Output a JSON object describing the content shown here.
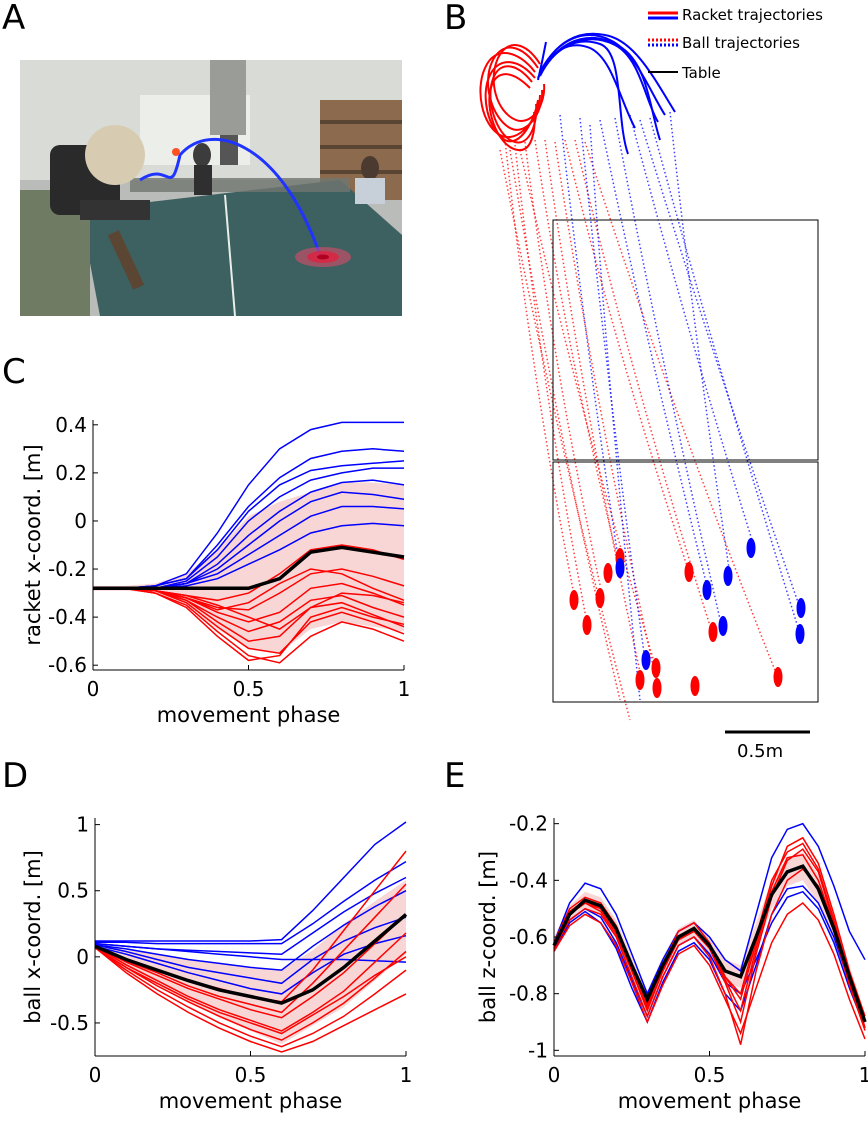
{
  "panels": {
    "a": "A",
    "b": "B",
    "c": "C",
    "d": "D",
    "e": "E"
  },
  "colors": {
    "racket": "#ff0000",
    "ball": "#0000ff",
    "mean": "#000000",
    "band": "#f9d6d6",
    "table_line": "#000000"
  },
  "legend": {
    "racket": "Racket trajectories",
    "ball": "Ball trajectories",
    "table": "Table"
  },
  "scale_bar": "0.5m",
  "chart_data": [
    {
      "id": "C",
      "type": "line",
      "xlabel": "movement phase",
      "ylabel": "racket x-coord. [m]",
      "xlim": [
        0,
        1
      ],
      "ylim": [
        -0.62,
        0.42
      ],
      "xticks": [
        "0",
        "0.5",
        "1"
      ],
      "yticks": [
        "0.4",
        "0.2",
        "0",
        "-0.2",
        "-0.4",
        "-0.6"
      ],
      "x": [
        0,
        0.1,
        0.2,
        0.3,
        0.4,
        0.5,
        0.6,
        0.7,
        0.8,
        0.9,
        1.0
      ],
      "mean": [
        -0.28,
        -0.28,
        -0.28,
        -0.28,
        -0.28,
        -0.28,
        -0.24,
        -0.13,
        -0.11,
        -0.13,
        -0.15
      ],
      "band_upper": [
        -0.27,
        -0.27,
        -0.26,
        -0.22,
        -0.12,
        0.02,
        0.08,
        0.12,
        0.16,
        0.16,
        0.15
      ],
      "band_lower": [
        -0.29,
        -0.29,
        -0.3,
        -0.35,
        -0.45,
        -0.53,
        -0.55,
        -0.45,
        -0.42,
        -0.44,
        -0.46
      ],
      "series": [
        {
          "color": "blue",
          "values": [
            -0.28,
            -0.28,
            -0.27,
            -0.22,
            -0.05,
            0.15,
            0.3,
            0.38,
            0.41,
            0.41,
            0.41
          ]
        },
        {
          "color": "blue",
          "values": [
            -0.28,
            -0.28,
            -0.27,
            -0.24,
            -0.1,
            0.06,
            0.18,
            0.26,
            0.29,
            0.3,
            0.29
          ]
        },
        {
          "color": "blue",
          "values": [
            -0.28,
            -0.28,
            -0.27,
            -0.24,
            -0.12,
            0.04,
            0.15,
            0.21,
            0.23,
            0.24,
            0.25
          ]
        },
        {
          "color": "blue",
          "values": [
            -0.28,
            -0.28,
            -0.28,
            -0.25,
            -0.15,
            0.0,
            0.1,
            0.17,
            0.2,
            0.22,
            0.22
          ]
        },
        {
          "color": "blue",
          "values": [
            -0.28,
            -0.28,
            -0.28,
            -0.26,
            -0.18,
            -0.06,
            0.04,
            0.12,
            0.16,
            0.17,
            0.15
          ]
        },
        {
          "color": "blue",
          "values": [
            -0.28,
            -0.28,
            -0.28,
            -0.26,
            -0.2,
            -0.1,
            0.0,
            0.08,
            0.12,
            0.11,
            0.09
          ]
        },
        {
          "color": "blue",
          "values": [
            -0.28,
            -0.28,
            -0.28,
            -0.26,
            -0.22,
            -0.14,
            -0.06,
            0.02,
            0.06,
            0.06,
            0.05
          ]
        },
        {
          "color": "blue",
          "values": [
            -0.28,
            -0.28,
            -0.28,
            -0.27,
            -0.24,
            -0.18,
            -0.12,
            -0.05,
            -0.02,
            -0.01,
            -0.02
          ]
        },
        {
          "color": "red",
          "values": [
            -0.28,
            -0.28,
            -0.29,
            -0.31,
            -0.33,
            -0.3,
            -0.22,
            -0.12,
            -0.1,
            -0.12,
            -0.16
          ]
        },
        {
          "color": "red",
          "values": [
            -0.28,
            -0.28,
            -0.29,
            -0.32,
            -0.36,
            -0.37,
            -0.3,
            -0.22,
            -0.2,
            -0.23,
            -0.27
          ]
        },
        {
          "color": "red",
          "values": [
            -0.28,
            -0.28,
            -0.29,
            -0.32,
            -0.38,
            -0.42,
            -0.38,
            -0.28,
            -0.26,
            -0.3,
            -0.35
          ]
        },
        {
          "color": "red",
          "values": [
            -0.28,
            -0.28,
            -0.29,
            -0.33,
            -0.4,
            -0.46,
            -0.42,
            -0.33,
            -0.31,
            -0.36,
            -0.4
          ]
        },
        {
          "color": "red",
          "values": [
            -0.28,
            -0.28,
            -0.29,
            -0.33,
            -0.42,
            -0.5,
            -0.48,
            -0.36,
            -0.34,
            -0.39,
            -0.44
          ]
        },
        {
          "color": "red",
          "values": [
            -0.28,
            -0.28,
            -0.29,
            -0.34,
            -0.44,
            -0.53,
            -0.55,
            -0.42,
            -0.38,
            -0.42,
            -0.47
          ]
        },
        {
          "color": "red",
          "values": [
            -0.28,
            -0.28,
            -0.3,
            -0.35,
            -0.46,
            -0.56,
            -0.59,
            -0.48,
            -0.42,
            -0.45,
            -0.5
          ]
        },
        {
          "color": "red",
          "values": [
            -0.28,
            -0.28,
            -0.3,
            -0.36,
            -0.48,
            -0.58,
            -0.56,
            -0.4,
            -0.36,
            -0.4,
            -0.43
          ]
        },
        {
          "color": "red",
          "values": [
            -0.28,
            -0.28,
            -0.29,
            -0.32,
            -0.37,
            -0.34,
            -0.26,
            -0.2,
            -0.22,
            -0.28,
            -0.33
          ]
        },
        {
          "color": "red",
          "values": [
            -0.28,
            -0.28,
            -0.29,
            -0.31,
            -0.35,
            -0.4,
            -0.45,
            -0.36,
            -0.3,
            -0.31,
            -0.34
          ]
        }
      ]
    },
    {
      "id": "D",
      "type": "line",
      "xlabel": "movement phase",
      "ylabel": "ball x-coord. [m]",
      "xlim": [
        0,
        1
      ],
      "ylim": [
        -0.75,
        1.05
      ],
      "xticks": [
        "0",
        "0.5",
        "1"
      ],
      "yticks": [
        "1",
        "0.5",
        "0",
        "-0.5"
      ],
      "x": [
        0,
        0.1,
        0.2,
        0.3,
        0.4,
        0.5,
        0.6,
        0.7,
        0.8,
        0.9,
        1.0
      ],
      "mean": [
        0.08,
        -0.02,
        -0.1,
        -0.18,
        -0.25,
        -0.3,
        -0.35,
        -0.25,
        -0.08,
        0.12,
        0.32
      ],
      "band_upper": [
        0.1,
        0.05,
        0.02,
        -0.02,
        -0.05,
        -0.08,
        -0.1,
        0.05,
        0.25,
        0.42,
        0.58
      ],
      "band_lower": [
        0.06,
        -0.1,
        -0.22,
        -0.34,
        -0.46,
        -0.56,
        -0.66,
        -0.52,
        -0.38,
        -0.18,
        0.02
      ],
      "series": [
        {
          "color": "blue",
          "values": [
            0.12,
            0.12,
            0.12,
            0.12,
            0.12,
            0.12,
            0.13,
            0.35,
            0.6,
            0.85,
            1.02
          ]
        },
        {
          "color": "blue",
          "values": [
            0.11,
            0.11,
            0.1,
            0.1,
            0.1,
            0.1,
            0.1,
            0.25,
            0.42,
            0.58,
            0.72
          ]
        },
        {
          "color": "blue",
          "values": [
            0.1,
            0.08,
            0.06,
            0.05,
            0.04,
            0.03,
            0.02,
            0.18,
            0.34,
            0.48,
            0.6
          ]
        },
        {
          "color": "blue",
          "values": [
            0.09,
            0.06,
            0.02,
            -0.02,
            -0.05,
            -0.08,
            -0.1,
            0.08,
            0.24,
            0.38,
            0.5
          ]
        },
        {
          "color": "blue",
          "values": [
            0.09,
            0.04,
            -0.02,
            -0.08,
            -0.12,
            -0.16,
            -0.2,
            -0.02,
            0.12,
            0.22,
            0.3
          ]
        },
        {
          "color": "blue",
          "values": [
            0.08,
            0.02,
            -0.05,
            -0.12,
            -0.18,
            -0.24,
            -0.28,
            -0.12,
            0.02,
            0.1,
            0.16
          ]
        },
        {
          "color": "blue",
          "values": [
            0.1,
            0.08,
            0.06,
            0.04,
            0.02,
            0.0,
            -0.02,
            -0.02,
            -0.02,
            -0.03,
            -0.04
          ]
        },
        {
          "color": "red",
          "values": [
            0.08,
            -0.04,
            -0.14,
            -0.24,
            -0.32,
            -0.4,
            -0.46,
            -0.3,
            -0.12,
            0.1,
            0.32
          ]
        },
        {
          "color": "red",
          "values": [
            0.08,
            -0.06,
            -0.18,
            -0.3,
            -0.4,
            -0.48,
            -0.56,
            -0.42,
            -0.26,
            -0.04,
            0.18
          ]
        },
        {
          "color": "red",
          "values": [
            0.07,
            -0.08,
            -0.22,
            -0.34,
            -0.45,
            -0.55,
            -0.63,
            -0.5,
            -0.35,
            -0.16,
            0.04
          ]
        },
        {
          "color": "red",
          "values": [
            0.07,
            -0.1,
            -0.25,
            -0.38,
            -0.5,
            -0.6,
            -0.68,
            -0.58,
            -0.45,
            -0.28,
            -0.1
          ]
        },
        {
          "color": "red",
          "values": [
            0.07,
            -0.12,
            -0.28,
            -0.42,
            -0.54,
            -0.64,
            -0.72,
            -0.64,
            -0.52,
            -0.4,
            -0.28
          ]
        },
        {
          "color": "red",
          "values": [
            0.08,
            -0.02,
            -0.1,
            -0.18,
            -0.24,
            -0.3,
            -0.34,
            -0.1,
            0.2,
            0.5,
            0.8
          ]
        },
        {
          "color": "red",
          "values": [
            0.08,
            -0.03,
            -0.12,
            -0.22,
            -0.3,
            -0.36,
            -0.42,
            -0.2,
            0.05,
            0.3,
            0.55
          ]
        },
        {
          "color": "red",
          "values": [
            0.07,
            -0.08,
            -0.2,
            -0.32,
            -0.42,
            -0.5,
            -0.58,
            -0.44,
            -0.3,
            -0.14,
            0.0
          ]
        }
      ]
    },
    {
      "id": "E",
      "type": "line",
      "xlabel": "movement phase",
      "ylabel": "ball z-coord. [m]",
      "xlim": [
        0,
        1
      ],
      "ylim": [
        -1.02,
        -0.18
      ],
      "xticks": [
        "0",
        "0.5",
        "1"
      ],
      "yticks": [
        "-0.2",
        "-0.4",
        "-0.6",
        "-0.8",
        "-1"
      ],
      "x": [
        0,
        0.05,
        0.1,
        0.15,
        0.2,
        0.25,
        0.3,
        0.35,
        0.4,
        0.45,
        0.5,
        0.55,
        0.6,
        0.65,
        0.7,
        0.75,
        0.8,
        0.85,
        0.9,
        0.95,
        1.0
      ],
      "mean": [
        -0.63,
        -0.52,
        -0.47,
        -0.49,
        -0.57,
        -0.7,
        -0.82,
        -0.7,
        -0.6,
        -0.57,
        -0.63,
        -0.72,
        -0.74,
        -0.6,
        -0.45,
        -0.37,
        -0.35,
        -0.43,
        -0.57,
        -0.74,
        -0.9
      ],
      "band_upper": [
        -0.6,
        -0.49,
        -0.44,
        -0.46,
        -0.54,
        -0.67,
        -0.79,
        -0.67,
        -0.57,
        -0.54,
        -0.6,
        -0.68,
        -0.7,
        -0.55,
        -0.4,
        -0.32,
        -0.3,
        -0.38,
        -0.52,
        -0.7,
        -0.87
      ],
      "band_lower": [
        -0.66,
        -0.55,
        -0.5,
        -0.52,
        -0.6,
        -0.73,
        -0.85,
        -0.73,
        -0.63,
        -0.6,
        -0.66,
        -0.76,
        -0.78,
        -0.65,
        -0.5,
        -0.42,
        -0.4,
        -0.48,
        -0.62,
        -0.78,
        -0.93
      ],
      "series": [
        {
          "color": "blue",
          "values": [
            -0.62,
            -0.48,
            -0.41,
            -0.43,
            -0.52,
            -0.66,
            -0.8,
            -0.68,
            -0.58,
            -0.55,
            -0.6,
            -0.68,
            -0.72,
            -0.52,
            -0.32,
            -0.22,
            -0.2,
            -0.28,
            -0.42,
            -0.58,
            -0.68
          ]
        },
        {
          "color": "blue",
          "values": [
            -0.64,
            -0.54,
            -0.5,
            -0.53,
            -0.62,
            -0.75,
            -0.88,
            -0.74,
            -0.63,
            -0.6,
            -0.66,
            -0.76,
            -0.8,
            -0.68,
            -0.55,
            -0.46,
            -0.44,
            -0.5,
            -0.62,
            -0.78,
            -0.92
          ]
        },
        {
          "color": "blue",
          "values": [
            -0.65,
            -0.55,
            -0.51,
            -0.55,
            -0.64,
            -0.78,
            -0.9,
            -0.76,
            -0.65,
            -0.62,
            -0.68,
            -0.8,
            -0.86,
            -0.7,
            -0.52,
            -0.43,
            -0.42,
            -0.48,
            -0.6,
            -0.76,
            -0.88
          ]
        },
        {
          "color": "red",
          "values": [
            -0.62,
            -0.5,
            -0.46,
            -0.48,
            -0.56,
            -0.7,
            -0.84,
            -0.7,
            -0.58,
            -0.55,
            -0.62,
            -0.74,
            -0.82,
            -0.62,
            -0.42,
            -0.28,
            -0.25,
            -0.34,
            -0.52,
            -0.72,
            -0.88
          ]
        },
        {
          "color": "red",
          "values": [
            -0.63,
            -0.52,
            -0.48,
            -0.5,
            -0.58,
            -0.72,
            -0.86,
            -0.72,
            -0.61,
            -0.58,
            -0.64,
            -0.76,
            -0.9,
            -0.66,
            -0.46,
            -0.33,
            -0.29,
            -0.37,
            -0.55,
            -0.75,
            -0.92
          ]
        },
        {
          "color": "red",
          "values": [
            -0.64,
            -0.54,
            -0.5,
            -0.52,
            -0.6,
            -0.74,
            -0.88,
            -0.74,
            -0.63,
            -0.6,
            -0.67,
            -0.8,
            -0.98,
            -0.72,
            -0.52,
            -0.4,
            -0.36,
            -0.42,
            -0.58,
            -0.77,
            -0.93
          ]
        },
        {
          "color": "red",
          "values": [
            -0.62,
            -0.51,
            -0.47,
            -0.5,
            -0.58,
            -0.71,
            -0.83,
            -0.71,
            -0.6,
            -0.57,
            -0.63,
            -0.74,
            -0.8,
            -0.6,
            -0.4,
            -0.3,
            -0.27,
            -0.36,
            -0.54,
            -0.74,
            -0.9
          ]
        },
        {
          "color": "red",
          "values": [
            -0.65,
            -0.56,
            -0.52,
            -0.55,
            -0.63,
            -0.76,
            -0.9,
            -0.77,
            -0.66,
            -0.63,
            -0.7,
            -0.82,
            -0.94,
            -0.78,
            -0.62,
            -0.52,
            -0.48,
            -0.54,
            -0.66,
            -0.82,
            -0.96
          ]
        },
        {
          "color": "red",
          "values": [
            -0.63,
            -0.52,
            -0.48,
            -0.51,
            -0.59,
            -0.72,
            -0.85,
            -0.72,
            -0.61,
            -0.58,
            -0.64,
            -0.75,
            -0.86,
            -0.64,
            -0.44,
            -0.32,
            -0.31,
            -0.4,
            -0.56,
            -0.76,
            -0.92
          ]
        }
      ]
    }
  ]
}
